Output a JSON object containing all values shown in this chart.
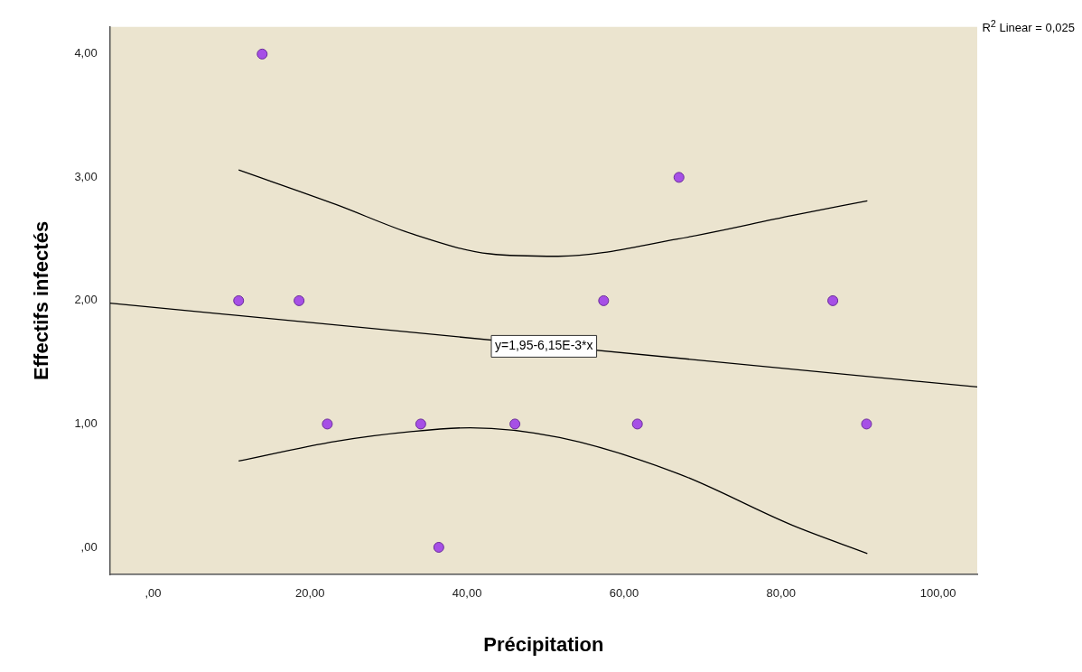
{
  "chart_data": {
    "type": "scatter",
    "xlabel": "Précipitation",
    "ylabel": "Effectifs infectés",
    "xlim": [
      -5.5,
      105
    ],
    "ylim": [
      -0.22,
      4.22
    ],
    "xticks": [
      {
        "value": 0,
        "label": ",00"
      },
      {
        "value": 20,
        "label": "20,00"
      },
      {
        "value": 40,
        "label": "40,00"
      },
      {
        "value": 60,
        "label": "60,00"
      },
      {
        "value": 80,
        "label": "80,00"
      },
      {
        "value": 100,
        "label": "100,00"
      }
    ],
    "yticks": [
      {
        "value": 0,
        "label": ",00"
      },
      {
        "value": 1,
        "label": "1,00"
      },
      {
        "value": 2,
        "label": "2,00"
      },
      {
        "value": 3,
        "label": "3,00"
      },
      {
        "value": 4,
        "label": "4,00"
      }
    ],
    "grid": false,
    "legend": false,
    "series": [
      {
        "type": "scatter",
        "marker": "circle",
        "color": "#a64fe6",
        "x": [
          10.9,
          13.9,
          18.6,
          22.2,
          34.1,
          36.4,
          46.1,
          57.4,
          61.7,
          67.0,
          86.6,
          90.9
        ],
        "values": [
          2,
          4,
          2,
          1,
          1,
          0,
          1,
          2,
          1,
          3,
          2,
          1
        ]
      },
      {
        "type": "line",
        "marker": "none",
        "color": "#000000",
        "x": [
          -5.5,
          105
        ],
        "values": [
          1.98,
          1.3
        ]
      },
      {
        "type": "line",
        "marker": "none",
        "color": "#000000",
        "x": [
          10.9,
          23.3,
          33.1,
          42.9,
          51.6,
          66.8,
          81.4,
          91.0
        ],
        "values": [
          3.06,
          2.78,
          2.54,
          2.38,
          2.36,
          2.5,
          2.69,
          2.81
        ]
      },
      {
        "type": "line",
        "marker": "none",
        "color": "#000000",
        "x": [
          10.9,
          23.3,
          33.1,
          40.4,
          51.8,
          66.8,
          81.4,
          91.0
        ],
        "values": [
          0.7,
          0.86,
          0.94,
          0.97,
          0.89,
          0.6,
          0.18,
          -0.05
        ]
      }
    ],
    "annotations": [
      {
        "text": "y=1,95-6,15E-3*x",
        "x": 49.8,
        "y": 1.63
      },
      "R$^{2}$ Linear = 0,025"
    ]
  }
}
